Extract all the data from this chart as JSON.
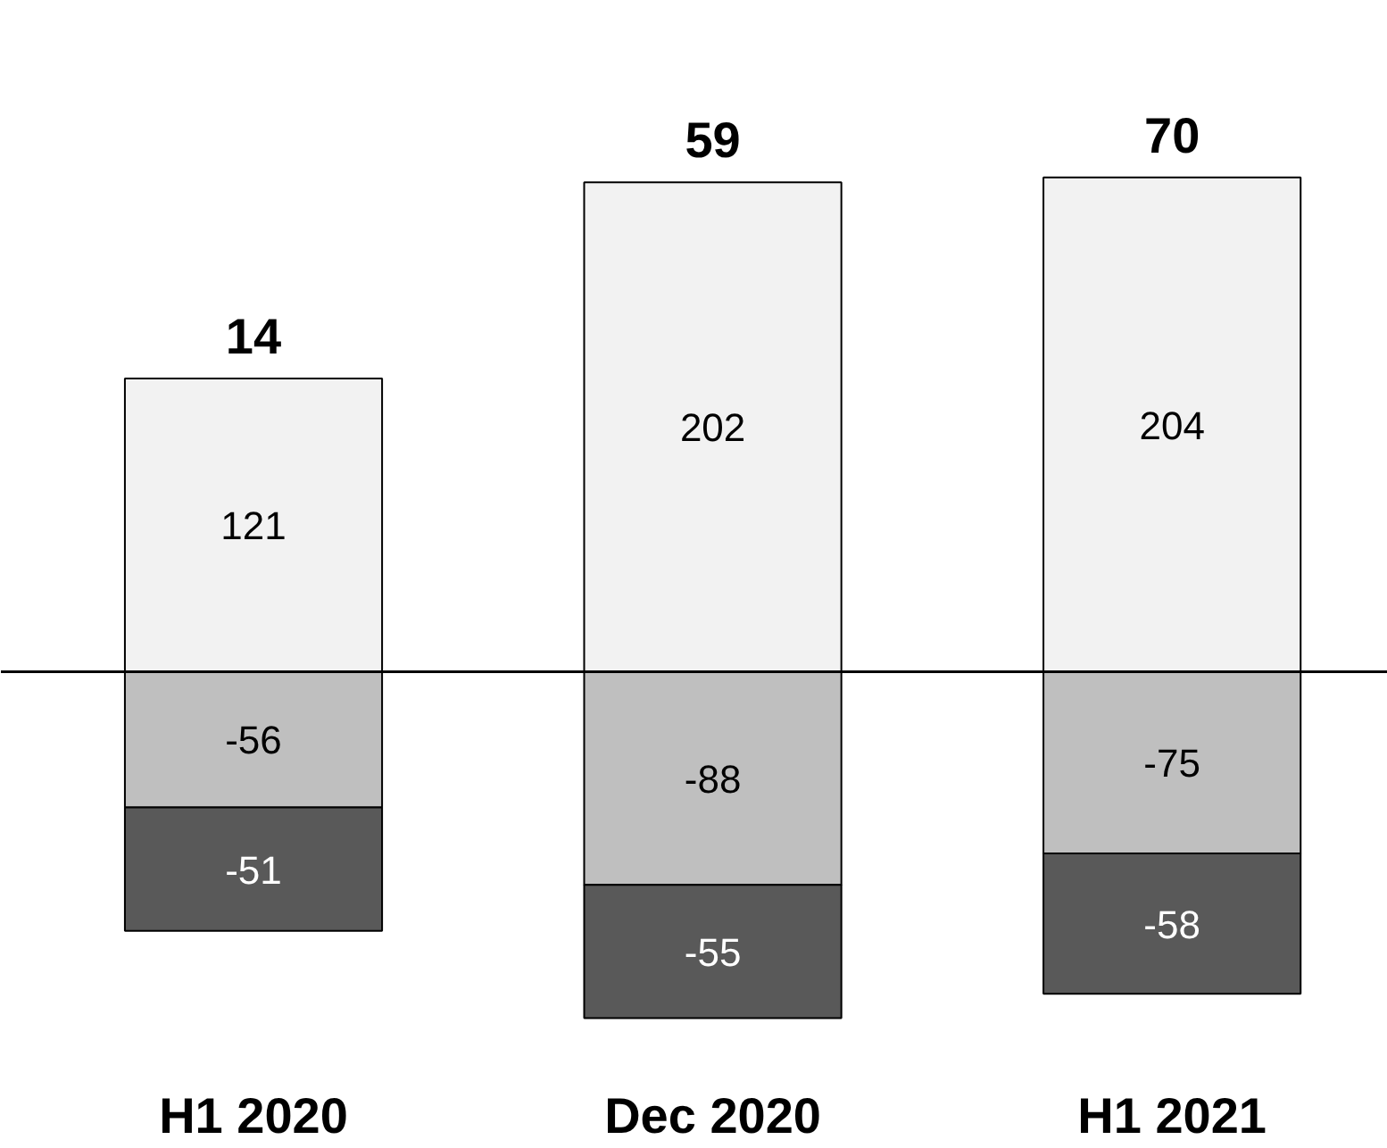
{
  "chart_data": {
    "type": "bar",
    "stacked": true,
    "categories": [
      "H1 2020",
      "Dec 2020",
      "H1 2021"
    ],
    "series": [
      {
        "color": "#f2f2f2",
        "values": [
          121,
          202,
          204
        ]
      },
      {
        "color": "#bfbfbf",
        "values": [
          -56,
          -88,
          -75
        ]
      },
      {
        "color": "#595959",
        "values": [
          -51,
          -55,
          -58
        ]
      }
    ],
    "data_labels": true,
    "totals": [
      "14",
      "59",
      "70"
    ],
    "grid": false
  }
}
